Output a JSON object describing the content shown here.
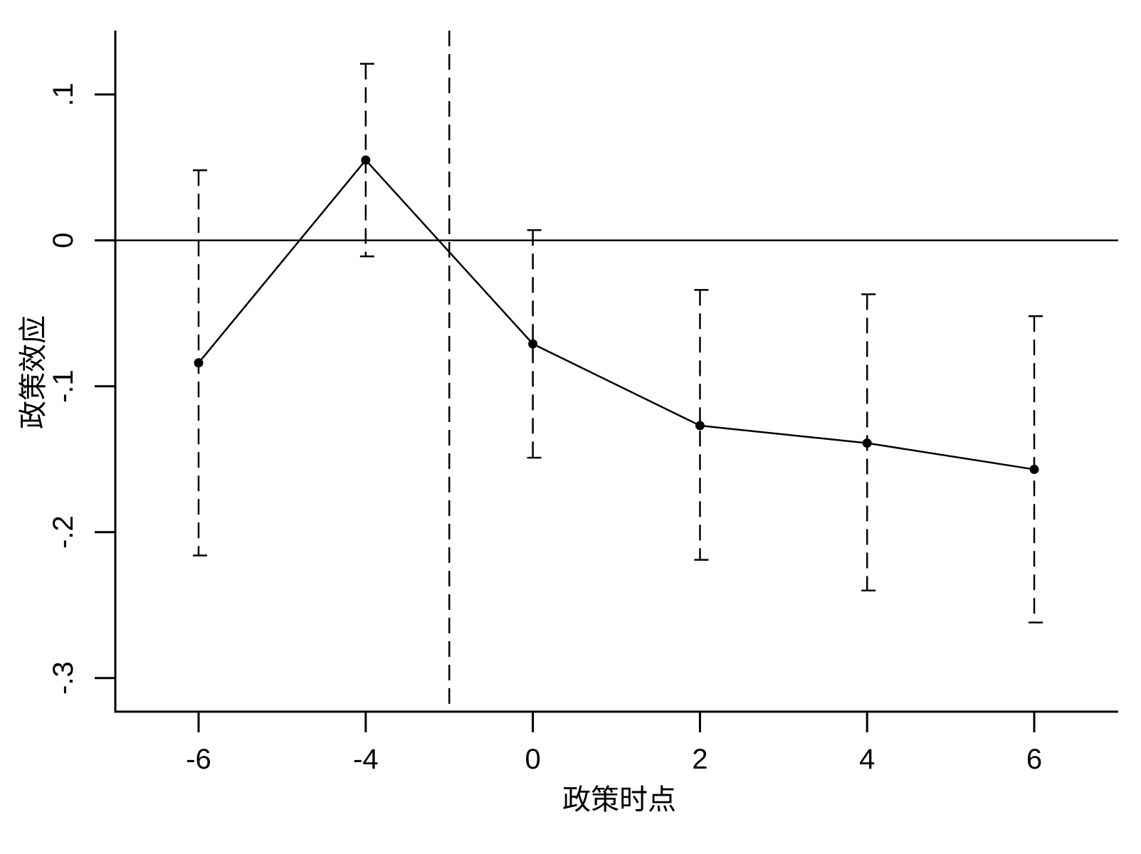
{
  "chart_data": {
    "type": "line",
    "title": "",
    "xlabel": "政策时点",
    "ylabel": "政策效应",
    "categories": [
      "-6",
      "-4",
      "0",
      "2",
      "4",
      "6"
    ],
    "series": [
      {
        "values": [
          -0.084,
          0.055,
          -0.071,
          -0.127,
          -0.139,
          -0.157
        ],
        "ci_upper": [
          0.048,
          0.121,
          0.007,
          -0.034,
          -0.037,
          -0.052
        ],
        "ci_lower": [
          -0.216,
          -0.011,
          -0.149,
          -0.219,
          -0.24,
          -0.262
        ]
      }
    ],
    "y_ticks": [
      {
        "value": 0.1,
        "label": ".1"
      },
      {
        "value": 0,
        "label": "0"
      },
      {
        "value": -0.1,
        "label": "-.1"
      },
      {
        "value": -0.2,
        "label": "-.2"
      },
      {
        "value": -0.3,
        "label": "-.3"
      }
    ],
    "ylim": [
      -0.32,
      0.144
    ],
    "reference_lines": {
      "horizontal_y": 0,
      "vertical_dashed_between": [
        "-4",
        "0"
      ]
    },
    "grid": false,
    "legend": "none",
    "colors": {
      "line": "#000000",
      "marker": "#000000",
      "ci": "#000000"
    }
  }
}
